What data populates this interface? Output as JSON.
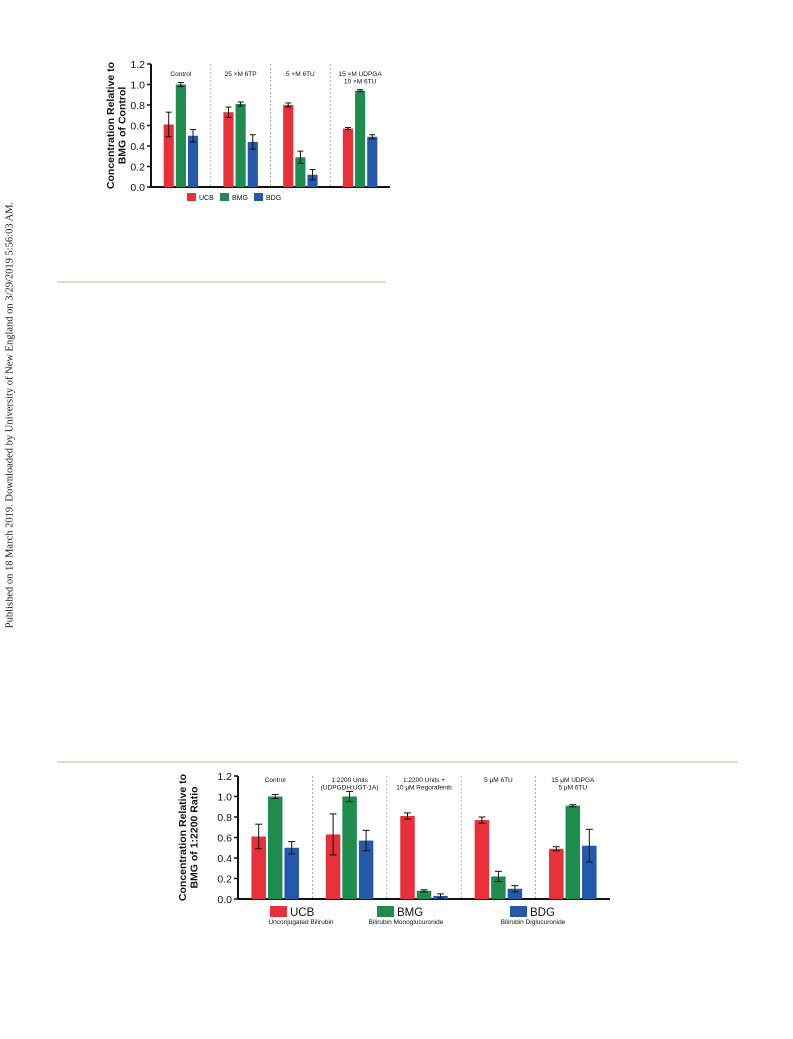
{
  "side_note": "Published on 18 March 2019. Downloaded by University of New England on 3/29/2019 5:56:03 AM.",
  "colors": {
    "UCB": "#e8303a",
    "BMG": "#1e8c4f",
    "BDG": "#2458a8",
    "rule": "#d9dcc8"
  },
  "chart_data": [
    {
      "type": "bar",
      "ylabel": [
        "Concentration Relative to",
        "BMG of Control"
      ],
      "ylim": [
        0,
        1.2
      ],
      "yticks": [
        "0.0",
        "0.2",
        "0.4",
        "0.6",
        "0.8",
        "1.0",
        "1.2"
      ],
      "groups": [
        [
          "Control"
        ],
        [
          "25 ×M 6TP"
        ],
        [
          "5 ×M 6TU"
        ],
        [
          "15 ×M UDPGA",
          "10 ×M 6TU"
        ]
      ],
      "series": [
        {
          "name": "UCB",
          "values": [
            0.61,
            0.73,
            0.8,
            0.57
          ],
          "errors": [
            0.12,
            0.05,
            0.02,
            0.01
          ]
        },
        {
          "name": "BMG",
          "values": [
            1.0,
            0.81,
            0.29,
            0.94
          ],
          "errors": [
            0.02,
            0.02,
            0.06,
            0.01
          ]
        },
        {
          "name": "BDG",
          "values": [
            0.5,
            0.44,
            0.12,
            0.49
          ],
          "errors": [
            0.06,
            0.07,
            0.05,
            0.02
          ]
        }
      ],
      "legend": [
        {
          "label": "UCB",
          "sub": ""
        },
        {
          "label": "BMG",
          "sub": ""
        },
        {
          "label": "BDG",
          "sub": ""
        }
      ],
      "grid": false,
      "legend_position": "bottom"
    },
    {
      "type": "bar",
      "ylabel": [
        "Concentration Relative to",
        "BMG of 1:2200 Ratio"
      ],
      "ylim": [
        0,
        1.2
      ],
      "yticks": [
        "0.0",
        "0.2",
        "0.4",
        "0.6",
        "0.8",
        "1.0",
        "1.2"
      ],
      "groups": [
        [
          "Control"
        ],
        [
          "1:2200 Units",
          "(UDPGDH:UGT-1A)"
        ],
        [
          "1:2200 Units +",
          "10 μM Regorafenib"
        ],
        [
          "5 μM 6TU"
        ],
        [
          "15 μM UDPGA",
          "5 μM 6TU"
        ]
      ],
      "series": [
        {
          "name": "UCB",
          "values": [
            0.61,
            0.63,
            0.81,
            0.77,
            0.49
          ],
          "errors": [
            0.12,
            0.2,
            0.03,
            0.03,
            0.02
          ]
        },
        {
          "name": "BMG",
          "values": [
            1.0,
            1.0,
            0.08,
            0.22,
            0.91
          ],
          "errors": [
            0.02,
            0.05,
            0.01,
            0.05,
            0.01
          ]
        },
        {
          "name": "BDG",
          "values": [
            0.5,
            0.57,
            0.03,
            0.1,
            0.52
          ],
          "errors": [
            0.06,
            0.1,
            0.02,
            0.03,
            0.16
          ]
        }
      ],
      "legend": [
        {
          "label": "UCB",
          "sub": "Unconjugated Bilirubin"
        },
        {
          "label": "BMG",
          "sub": "Bilirubin Monoglucuronide"
        },
        {
          "label": "BDG",
          "sub": "Bilirubin Diglucuronide"
        }
      ],
      "grid": false,
      "legend_position": "bottom"
    }
  ]
}
